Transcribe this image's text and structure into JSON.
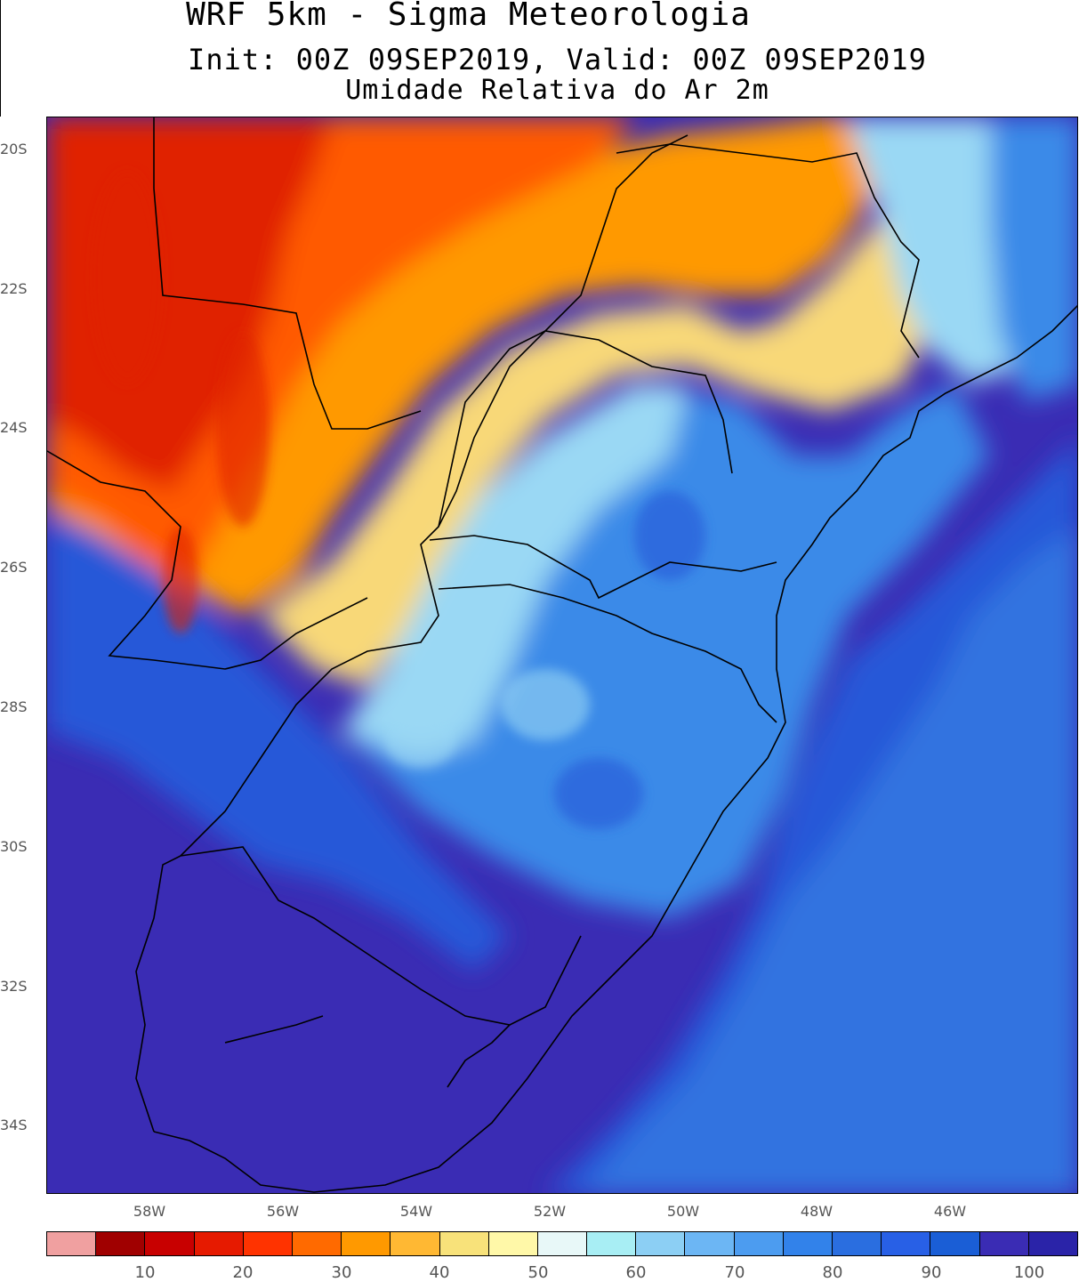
{
  "header": {
    "title": "WRF 5km - Sigma Meteorologia",
    "subtitle": "Init: 00Z 09SEP2019, Valid: 00Z 09SEP2019",
    "variable": "Umidade Relativa do Ar 2m"
  },
  "axes": {
    "lat_labels": [
      "20S",
      "22S",
      "24S",
      "26S",
      "28S",
      "30S",
      "32S",
      "34S"
    ],
    "lon_labels": [
      "58W",
      "56W",
      "54W",
      "52W",
      "50W",
      "48W",
      "46W"
    ]
  },
  "colorbar": {
    "tick_labels": [
      "10",
      "20",
      "30",
      "40",
      "50",
      "60",
      "70",
      "80",
      "90",
      "100"
    ],
    "colors": [
      "#f0a0a0",
      "#a00000",
      "#c80000",
      "#e61a00",
      "#ff3300",
      "#ff6a00",
      "#ff9900",
      "#ffb833",
      "#f8e27a",
      "#fff8a8",
      "#e8f8f8",
      "#a8eef4",
      "#8ccff4",
      "#6cb6f4",
      "#4c9cf0",
      "#3282ea",
      "#2a6ee0",
      "#2860e6",
      "#1a5ed6",
      "#3a2cb4",
      "#2a23a8"
    ]
  },
  "colors": {
    "dry_core": "#e02000",
    "dry": "#ff5a00",
    "warm": "#ff9900",
    "moderate": "#f8d878",
    "humid_light": "#9ad8f4",
    "humid": "#3a8ae8",
    "wet": "#2858d8",
    "saturated": "#3a2cb4",
    "border": "#000000"
  }
}
